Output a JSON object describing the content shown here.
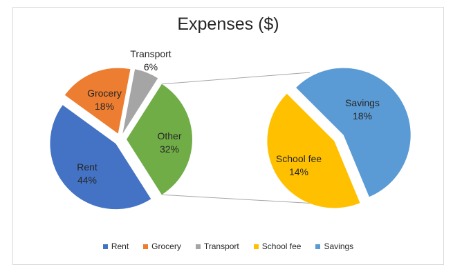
{
  "frame": {
    "background": "#ffffff",
    "border_color": "#d9d9d9"
  },
  "chart_data": {
    "type": "pie",
    "variant": "pie-of-pie",
    "title": "Expenses ($)",
    "grid": false,
    "legend_position": "bottom",
    "label_color": "#262626",
    "connector_color": "#a6a6a6",
    "main_pie": {
      "slices": [
        {
          "name": "Other",
          "pct": 32,
          "color": "#70AD47",
          "label_outside": false
        },
        {
          "name": "Rent",
          "pct": 44,
          "color": "#4472C4",
          "label_outside": false
        },
        {
          "name": "Grocery",
          "pct": 18,
          "color": "#ED7D31",
          "label_outside": false
        },
        {
          "name": "Transport",
          "pct": 6,
          "color": "#A5A5A5",
          "label_outside": true
        }
      ]
    },
    "secondary_pie": {
      "represents": "Other",
      "total_pct": 32,
      "slices": [
        {
          "name": "Savings",
          "pct": 18,
          "color": "#5B9BD5",
          "label_outside": false
        },
        {
          "name": "School fee",
          "pct": 14,
          "color": "#FFC000",
          "label_outside": false
        }
      ]
    },
    "legend": [
      {
        "label": "Rent",
        "color": "#4472C4"
      },
      {
        "label": "Grocery",
        "color": "#ED7D31"
      },
      {
        "label": "Transport",
        "color": "#A5A5A5"
      },
      {
        "label": "School fee",
        "color": "#FFC000"
      },
      {
        "label": "Savings",
        "color": "#5B9BD5"
      }
    ]
  }
}
